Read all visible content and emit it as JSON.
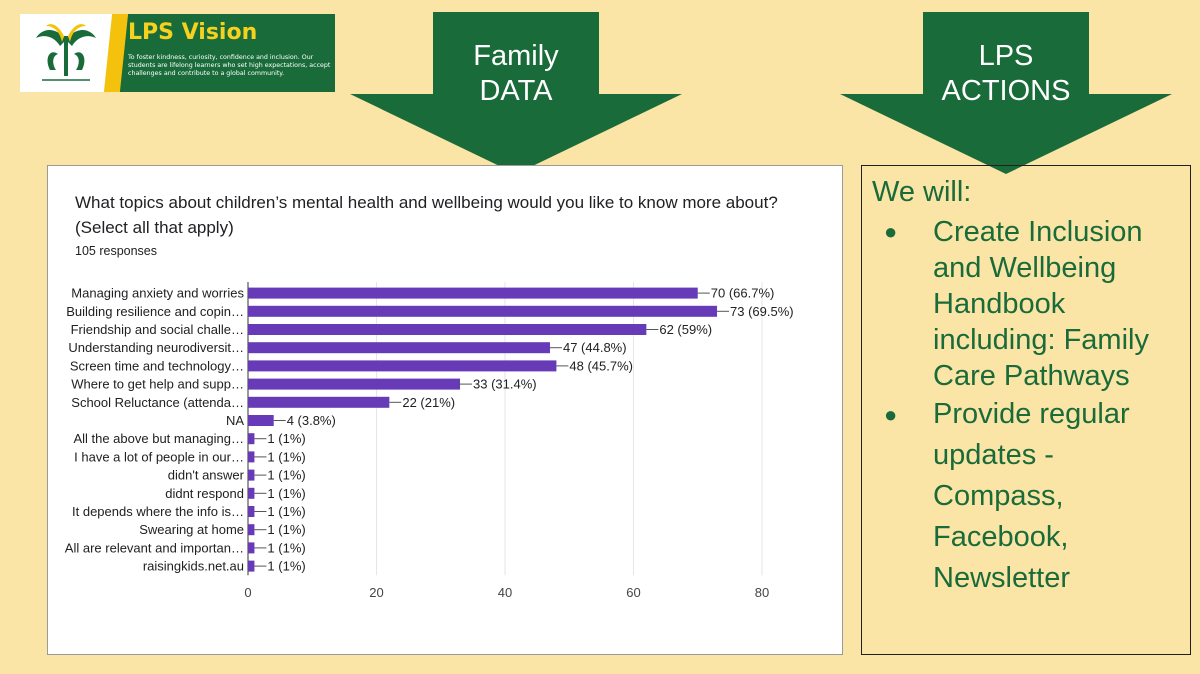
{
  "banner": {
    "title": "LPS Vision",
    "text": "To foster kindness, curiosity, confidence and inclusion. Our students are lifelong learners who set high expectations, accept challenges and contribute to a global community."
  },
  "arrows": {
    "family": {
      "line1": "Family",
      "line2": "DATA"
    },
    "actions": {
      "line1": "LPS",
      "line2": "ACTIONS"
    }
  },
  "colors": {
    "green": "#1a6b3a",
    "bar": "#673ab7",
    "background": "#fbe5a6"
  },
  "actions_box": {
    "heading": "We will:",
    "items": [
      "Create Inclusion and Wellbeing Handbook including: Family Care Pathways",
      "Provide regular updates - Compass, Facebook, Newsletter"
    ]
  },
  "chart_data": {
    "type": "bar",
    "orientation": "horizontal",
    "title": "What topics about children’s mental health and wellbeing would you like to know more about? (Select all that apply)",
    "subtitle": "105 responses",
    "categories": [
      "Managing anxiety and worries",
      "Building resilience and copin…",
      "Friendship and social challe…",
      "Understanding neurodiversit…",
      "Screen time and technology…",
      "Where to get help and supp…",
      "School Reluctance (attenda…",
      "NA",
      "All the above but managing…",
      "I have a lot of people in our…",
      "didn't answer",
      "didnt respond",
      "It depends where the info is…",
      "Swearing at home",
      "All are relevant and importan…",
      "raisingkids.net.au"
    ],
    "values": [
      70,
      73,
      62,
      47,
      48,
      33,
      22,
      4,
      1,
      1,
      1,
      1,
      1,
      1,
      1,
      1
    ],
    "data_labels": [
      "70 (66.7%)",
      "73 (69.5%)",
      "62 (59%)",
      "47 (44.8%)",
      "48 (45.7%)",
      "33 (31.4%)",
      "22 (21%)",
      "4 (3.8%)",
      "1 (1%)",
      "1 (1%)",
      "1 (1%)",
      "1 (1%)",
      "1 (1%)",
      "1 (1%)",
      "1 (1%)",
      "1 (1%)"
    ],
    "xticks": [
      "0",
      "20",
      "40",
      "60",
      "80"
    ],
    "xlim": [
      0,
      80
    ],
    "grid": true,
    "legend": "none"
  }
}
